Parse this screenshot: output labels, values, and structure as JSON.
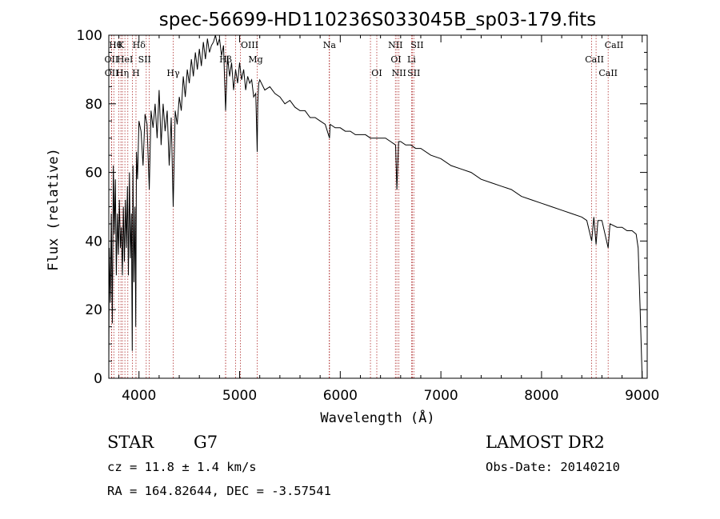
{
  "chart_data": {
    "type": "line",
    "title": "spec-56699-HD110236S033045B_sp03-179.fits",
    "xlabel": "Wavelength (Å)",
    "ylabel": "Flux (relative)",
    "xlim": [
      3700,
      9050
    ],
    "ylim": [
      0,
      100
    ],
    "xticks": [
      4000,
      5000,
      6000,
      7000,
      8000,
      9000
    ],
    "yticks": [
      0,
      20,
      40,
      60,
      80,
      100
    ],
    "grid": false,
    "series": [
      {
        "x": [
          3700,
          3705,
          3715,
          3725,
          3735,
          3745,
          3755,
          3765,
          3775,
          3785,
          3795,
          3805,
          3815,
          3825,
          3835,
          3845,
          3855,
          3865,
          3875,
          3885,
          3895,
          3905,
          3915,
          3925,
          3933,
          3940,
          3950,
          3960,
          3968,
          3975,
          3985,
          4000,
          4020,
          4040,
          4060,
          4080,
          4102,
          4120,
          4140,
          4160,
          4180,
          4200,
          4220,
          4240,
          4260,
          4280,
          4300,
          4320,
          4340,
          4360,
          4380,
          4400,
          4420,
          4440,
          4460,
          4480,
          4500,
          4520,
          4540,
          4560,
          4580,
          4600,
          4620,
          4640,
          4660,
          4680,
          4700,
          4720,
          4740,
          4760,
          4780,
          4800,
          4820,
          4840,
          4861,
          4880,
          4900,
          4920,
          4940,
          4960,
          4980,
          5000,
          5020,
          5040,
          5060,
          5080,
          5100,
          5120,
          5140,
          5160,
          5170,
          5175,
          5180,
          5190,
          5200,
          5250,
          5300,
          5350,
          5400,
          5450,
          5500,
          5550,
          5600,
          5650,
          5700,
          5750,
          5800,
          5850,
          5893,
          5900,
          5950,
          6000,
          6050,
          6100,
          6150,
          6200,
          6250,
          6300,
          6350,
          6400,
          6450,
          6500,
          6550,
          6563,
          6580,
          6600,
          6650,
          6700,
          6750,
          6800,
          6900,
          7000,
          7100,
          7200,
          7300,
          7400,
          7500,
          7600,
          7700,
          7800,
          7900,
          8000,
          8100,
          8200,
          8300,
          8400,
          8450,
          8498,
          8520,
          8542,
          8560,
          8600,
          8662,
          8680,
          8750,
          8800,
          8850,
          8900,
          8940,
          8960,
          8980,
          9000
        ],
        "values": [
          3,
          38,
          22,
          48,
          16,
          62,
          42,
          58,
          30,
          48,
          36,
          52,
          38,
          44,
          30,
          50,
          34,
          52,
          38,
          56,
          30,
          60,
          35,
          48,
          8,
          62,
          28,
          50,
          15,
          66,
          58,
          75,
          72,
          62,
          77,
          74,
          55,
          78,
          73,
          80,
          70,
          84,
          68,
          80,
          72,
          78,
          62,
          76,
          50,
          78,
          74,
          82,
          78,
          88,
          82,
          90,
          86,
          93,
          88,
          95,
          90,
          96,
          91,
          98,
          93,
          99,
          95,
          97,
          98,
          100,
          97,
          99,
          94,
          97,
          78,
          94,
          88,
          92,
          84,
          90,
          86,
          92,
          87,
          90,
          84,
          88,
          86,
          87,
          82,
          83,
          72,
          66,
          80,
          86,
          87,
          84,
          85,
          83,
          82,
          80,
          81,
          79,
          78,
          78,
          76,
          76,
          75,
          74,
          70,
          74,
          73,
          73,
          72,
          72,
          71,
          71,
          71,
          70,
          70,
          70,
          70,
          69,
          68,
          55,
          69,
          69,
          68,
          68,
          67,
          67,
          65,
          64,
          62,
          61,
          60,
          58,
          57,
          56,
          55,
          53,
          52,
          51,
          50,
          49,
          48,
          47,
          46,
          40,
          47,
          39,
          46,
          46,
          38,
          45,
          44,
          44,
          43,
          43,
          42,
          38,
          20,
          0
        ]
      }
    ],
    "lines": [
      {
        "x": 3750,
        "label": "Hθ",
        "row": 0,
        "dx": 2
      },
      {
        "x": 3820,
        "label": "K",
        "row": 0,
        "dx": 0
      },
      {
        "x": 3889,
        "label": "Hδ",
        "row": 0,
        "dx": 14
      },
      {
        "x": 4861,
        "label": "OIII",
        "row": 0,
        "dx": 30
      },
      {
        "x": 5893,
        "label": "Na",
        "row": 0,
        "dx": 0
      },
      {
        "x": 6548,
        "label": "NII",
        "row": 0,
        "dx": 0
      },
      {
        "x": 6717,
        "label": "SII",
        "row": 0,
        "dx": 6
      },
      {
        "x": 8498,
        "label": "CaII",
        "row": 0,
        "dx": 28
      },
      {
        "x": 3727,
        "label": "OII",
        "row": 1,
        "dx": 0
      },
      {
        "x": 3860,
        "label": "HeI",
        "row": 1,
        "dx": 0
      },
      {
        "x": 4072,
        "label": "SII",
        "row": 1,
        "dx": -2
      },
      {
        "x": 4861,
        "label": "Hβ",
        "row": 1,
        "dx": 0
      },
      {
        "x": 5175,
        "label": "Mg",
        "row": 1,
        "dx": -2
      },
      {
        "x": 6300,
        "label": "OI",
        "row": 1,
        "dx": 32
      },
      {
        "x": 6708,
        "label": "Li",
        "row": 1,
        "dx": 0
      },
      {
        "x": 8542,
        "label": "CaII",
        "row": 1,
        "dx": -2
      },
      {
        "x": 3729,
        "label": "OII",
        "row": 2,
        "dx": 0
      },
      {
        "x": 3835,
        "label": "Hη",
        "row": 2,
        "dx": 0
      },
      {
        "x": 3970,
        "label": "H",
        "row": 2,
        "dx": 0
      },
      {
        "x": 4340,
        "label": "Hγ",
        "row": 2,
        "dx": 0
      },
      {
        "x": 4959,
        "label": "",
        "row": 2,
        "dx": 0
      },
      {
        "x": 5007,
        "label": "",
        "row": 2,
        "dx": 0
      },
      {
        "x": 6363,
        "label": "OI",
        "row": 2,
        "dx": 0
      },
      {
        "x": 6583,
        "label": "NII",
        "row": 2,
        "dx": 0
      },
      {
        "x": 6731,
        "label": "SII",
        "row": 2,
        "dx": 0
      },
      {
        "x": 8662,
        "label": "CaII",
        "row": 2,
        "dx": 0
      },
      {
        "x": 3798,
        "label": "",
        "row": 3,
        "dx": 0
      },
      {
        "x": 3934,
        "label": "",
        "row": 3,
        "dx": 0
      },
      {
        "x": 4102,
        "label": "",
        "row": 3,
        "dx": 0
      },
      {
        "x": 5890,
        "label": "",
        "row": 3,
        "dx": 0
      },
      {
        "x": 6563,
        "label": "",
        "row": 3,
        "dx": 0
      }
    ]
  },
  "info": {
    "object_class": "STAR",
    "subclass": "G7",
    "survey": "LAMOST DR2",
    "redshift": "cz = 11.8 ± 1.4 km/s",
    "obs_date": "Obs-Date: 20140210",
    "coords": "RA = 164.82644, DEC =  -3.57541"
  },
  "colors": {
    "spectrum": "#000000",
    "line_marker": "#b03030",
    "axes": "#000000"
  }
}
